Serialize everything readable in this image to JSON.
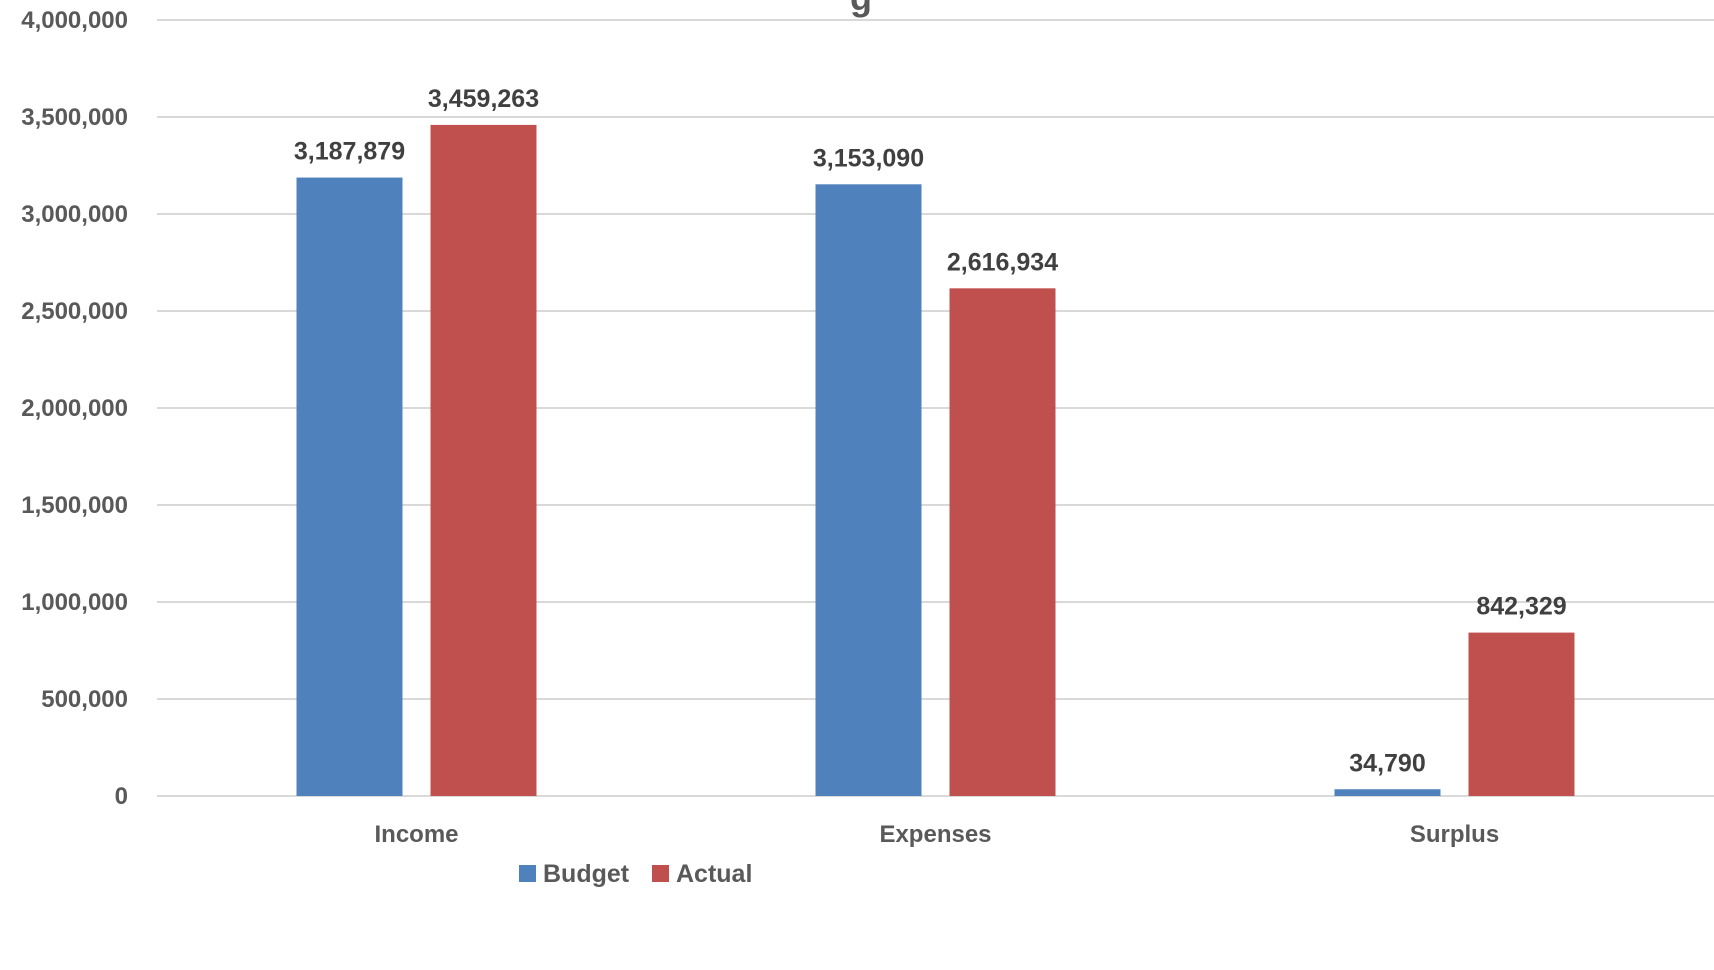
{
  "chart_data": {
    "type": "bar",
    "title_fragment": "g",
    "categories": [
      "Income",
      "Expenses",
      "Surplus"
    ],
    "series": [
      {
        "name": "Budget",
        "color": "#4F81BD",
        "values": [
          3187879,
          3153090,
          34790
        ],
        "labels": [
          "3,187,879",
          "3,153,090",
          "34,790"
        ]
      },
      {
        "name": "Actual",
        "color": "#C0504D",
        "values": [
          3459263,
          2616934,
          842329
        ],
        "labels": [
          "3,459,263",
          "2,616,934",
          "842,329"
        ]
      }
    ],
    "ylim": [
      0,
      4000000
    ],
    "yticks": [
      0,
      500000,
      1000000,
      1500000,
      2000000,
      2500000,
      3000000,
      3500000,
      4000000
    ],
    "ytick_labels": [
      "0",
      "500,000",
      "1,000,000",
      "1,500,000",
      "2,000,000",
      "2,500,000",
      "3,000,000",
      "3,500,000",
      "4,000,000"
    ],
    "grid": true,
    "legend_position": "bottom-center",
    "gridline_color": "#D9D9D9"
  }
}
